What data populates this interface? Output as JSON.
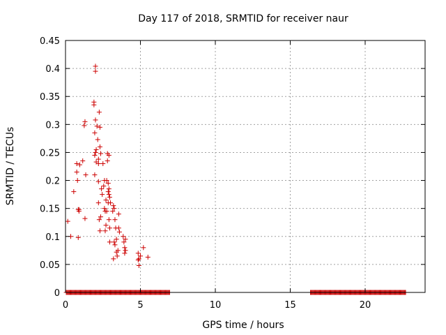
{
  "chart_data": {
    "type": "scatter",
    "title": "Day 117 of 2018, SRMTID for receiver naur",
    "xlabel": "GPS time / hours",
    "ylabel": "SRMTID / TECUs",
    "xlim": [
      0,
      24
    ],
    "ylim": [
      0,
      0.45
    ],
    "xticks": [
      0,
      5,
      10,
      15,
      20
    ],
    "yticks": [
      0,
      0.05,
      0.1,
      0.15,
      0.2,
      0.25,
      0.3,
      0.35,
      0.4,
      0.45
    ],
    "xtick_labels": [
      "0",
      "5",
      "10",
      "15",
      "20"
    ],
    "ytick_labels": [
      "0",
      "0.05",
      "0.1",
      "0.15",
      "0.2",
      "0.25",
      "0.3",
      "0.35",
      "0.4",
      "0.45"
    ],
    "grid": true,
    "marker": "+",
    "color": "#cc0000",
    "points": [
      [
        0.15,
        0.127
      ],
      [
        0.35,
        0.1
      ],
      [
        0.55,
        0.18
      ],
      [
        0.75,
        0.23
      ],
      [
        0.75,
        0.215
      ],
      [
        0.8,
        0.2
      ],
      [
        0.85,
        0.148
      ],
      [
        0.9,
        0.148
      ],
      [
        0.9,
        0.145
      ],
      [
        0.85,
        0.098
      ],
      [
        0.95,
        0.228
      ],
      [
        1.15,
        0.235
      ],
      [
        1.25,
        0.298
      ],
      [
        1.3,
        0.305
      ],
      [
        1.35,
        0.21
      ],
      [
        1.3,
        0.132
      ],
      [
        1.9,
        0.34
      ],
      [
        1.9,
        0.335
      ],
      [
        1.95,
        0.285
      ],
      [
        2.0,
        0.404
      ],
      [
        2.0,
        0.395
      ],
      [
        2.0,
        0.308
      ],
      [
        2.05,
        0.255
      ],
      [
        2.0,
        0.25
      ],
      [
        1.95,
        0.245
      ],
      [
        2.05,
        0.233
      ],
      [
        1.95,
        0.21
      ],
      [
        2.1,
        0.297
      ],
      [
        2.15,
        0.273
      ],
      [
        2.2,
        0.238
      ],
      [
        2.2,
        0.23
      ],
      [
        2.25,
        0.322
      ],
      [
        2.3,
        0.295
      ],
      [
        2.3,
        0.26
      ],
      [
        2.35,
        0.248
      ],
      [
        2.2,
        0.198
      ],
      [
        2.2,
        0.16
      ],
      [
        2.25,
        0.13
      ],
      [
        2.3,
        0.11
      ],
      [
        2.35,
        0.135
      ],
      [
        2.4,
        0.185
      ],
      [
        2.45,
        0.175
      ],
      [
        2.5,
        0.23
      ],
      [
        2.55,
        0.19
      ],
      [
        2.6,
        0.2
      ],
      [
        2.6,
        0.15
      ],
      [
        2.65,
        0.145
      ],
      [
        2.65,
        0.11
      ],
      [
        2.7,
        0.165
      ],
      [
        2.7,
        0.12
      ],
      [
        2.75,
        0.2
      ],
      [
        2.75,
        0.145
      ],
      [
        2.8,
        0.248
      ],
      [
        2.8,
        0.235
      ],
      [
        2.85,
        0.195
      ],
      [
        2.85,
        0.18
      ],
      [
        2.85,
        0.16
      ],
      [
        2.9,
        0.245
      ],
      [
        2.9,
        0.185
      ],
      [
        2.9,
        0.175
      ],
      [
        2.9,
        0.13
      ],
      [
        2.95,
        0.17
      ],
      [
        2.95,
        0.115
      ],
      [
        3.0,
        0.16
      ],
      [
        2.95,
        0.09
      ],
      [
        3.15,
        0.145
      ],
      [
        3.2,
        0.155
      ],
      [
        3.25,
        0.15
      ],
      [
        3.3,
        0.13
      ],
      [
        3.25,
        0.09
      ],
      [
        3.3,
        0.085
      ],
      [
        3.35,
        0.115
      ],
      [
        3.4,
        0.095
      ],
      [
        3.4,
        0.072
      ],
      [
        3.45,
        0.065
      ],
      [
        3.2,
        0.06
      ],
      [
        3.55,
        0.14
      ],
      [
        3.55,
        0.115
      ],
      [
        3.6,
        0.108
      ],
      [
        3.5,
        0.075
      ],
      [
        3.85,
        0.1
      ],
      [
        3.9,
        0.09
      ],
      [
        3.95,
        0.08
      ],
      [
        4.0,
        0.095
      ],
      [
        4.0,
        0.075
      ],
      [
        3.95,
        0.07
      ],
      [
        4.85,
        0.07
      ],
      [
        4.85,
        0.058
      ],
      [
        4.9,
        0.06
      ],
      [
        4.9,
        0.048
      ],
      [
        5.0,
        0.065
      ],
      [
        5.2,
        0.08
      ],
      [
        5.5,
        0.063
      ]
    ],
    "zero_segments": [
      [
        0.05,
        6.95
      ],
      [
        16.35,
        22.7
      ]
    ]
  }
}
